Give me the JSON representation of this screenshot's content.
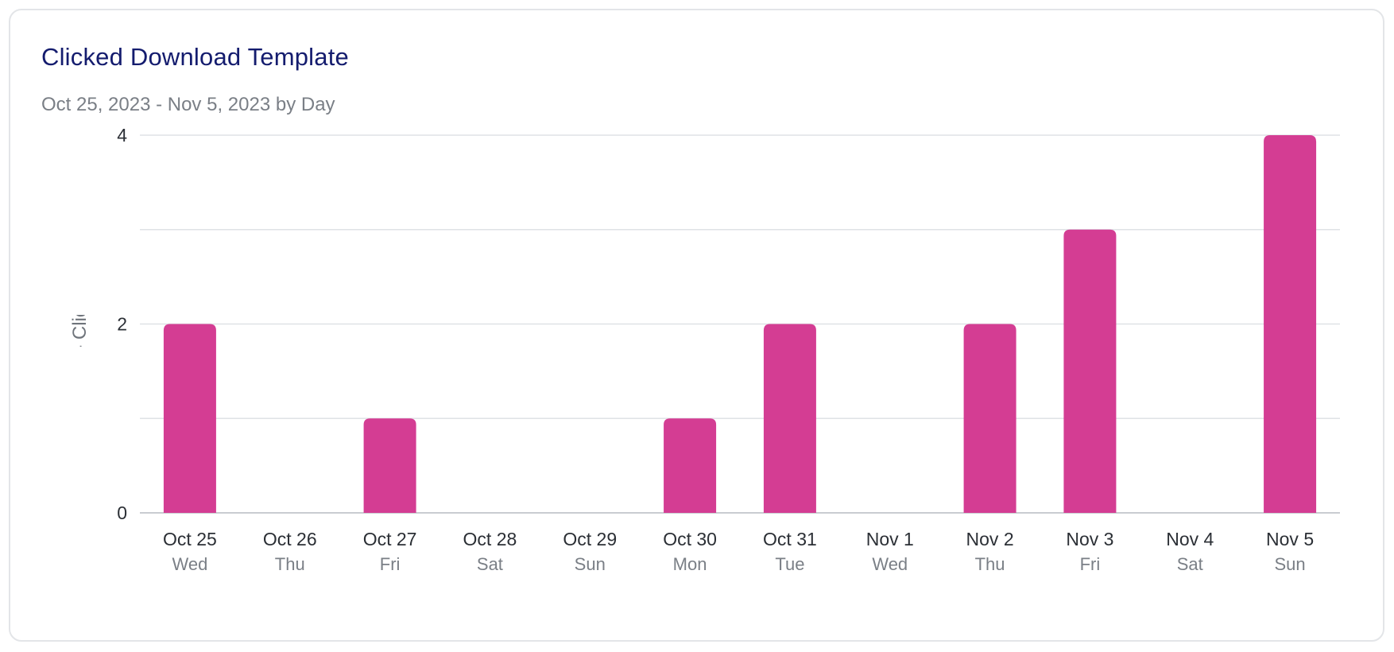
{
  "card": {
    "title": "Clicked Download Template",
    "subtitle": "Oct 25, 2023 - Nov 5, 2023 by Day"
  },
  "chart_data": {
    "type": "bar",
    "title": "Clicked Download Template",
    "subtitle": "Oct 25, 2023 - Nov 5, 2023 by Day",
    "xlabel": "",
    "ylabel": "Client - Payroll BVC - Clicked - Download Temp",
    "categories": [
      "Oct 25",
      "Oct 26",
      "Oct 27",
      "Oct 28",
      "Oct 29",
      "Oct 30",
      "Oct 31",
      "Nov 1",
      "Nov 2",
      "Nov 3",
      "Nov 4",
      "Nov 5"
    ],
    "weekdays": [
      "Wed",
      "Thu",
      "Fri",
      "Sat",
      "Sun",
      "Mon",
      "Tue",
      "Wed",
      "Thu",
      "Fri",
      "Sat",
      "Sun"
    ],
    "values": [
      2,
      0,
      1,
      0,
      0,
      1,
      2,
      0,
      2,
      3,
      0,
      4
    ],
    "ylim": [
      0,
      4
    ],
    "yticks": [
      0,
      2,
      4
    ],
    "minor_gridlines": [
      1,
      3
    ],
    "grid": true,
    "legend": "none",
    "colors": {
      "bar": "#d43d93",
      "title": "#141c6e"
    }
  }
}
